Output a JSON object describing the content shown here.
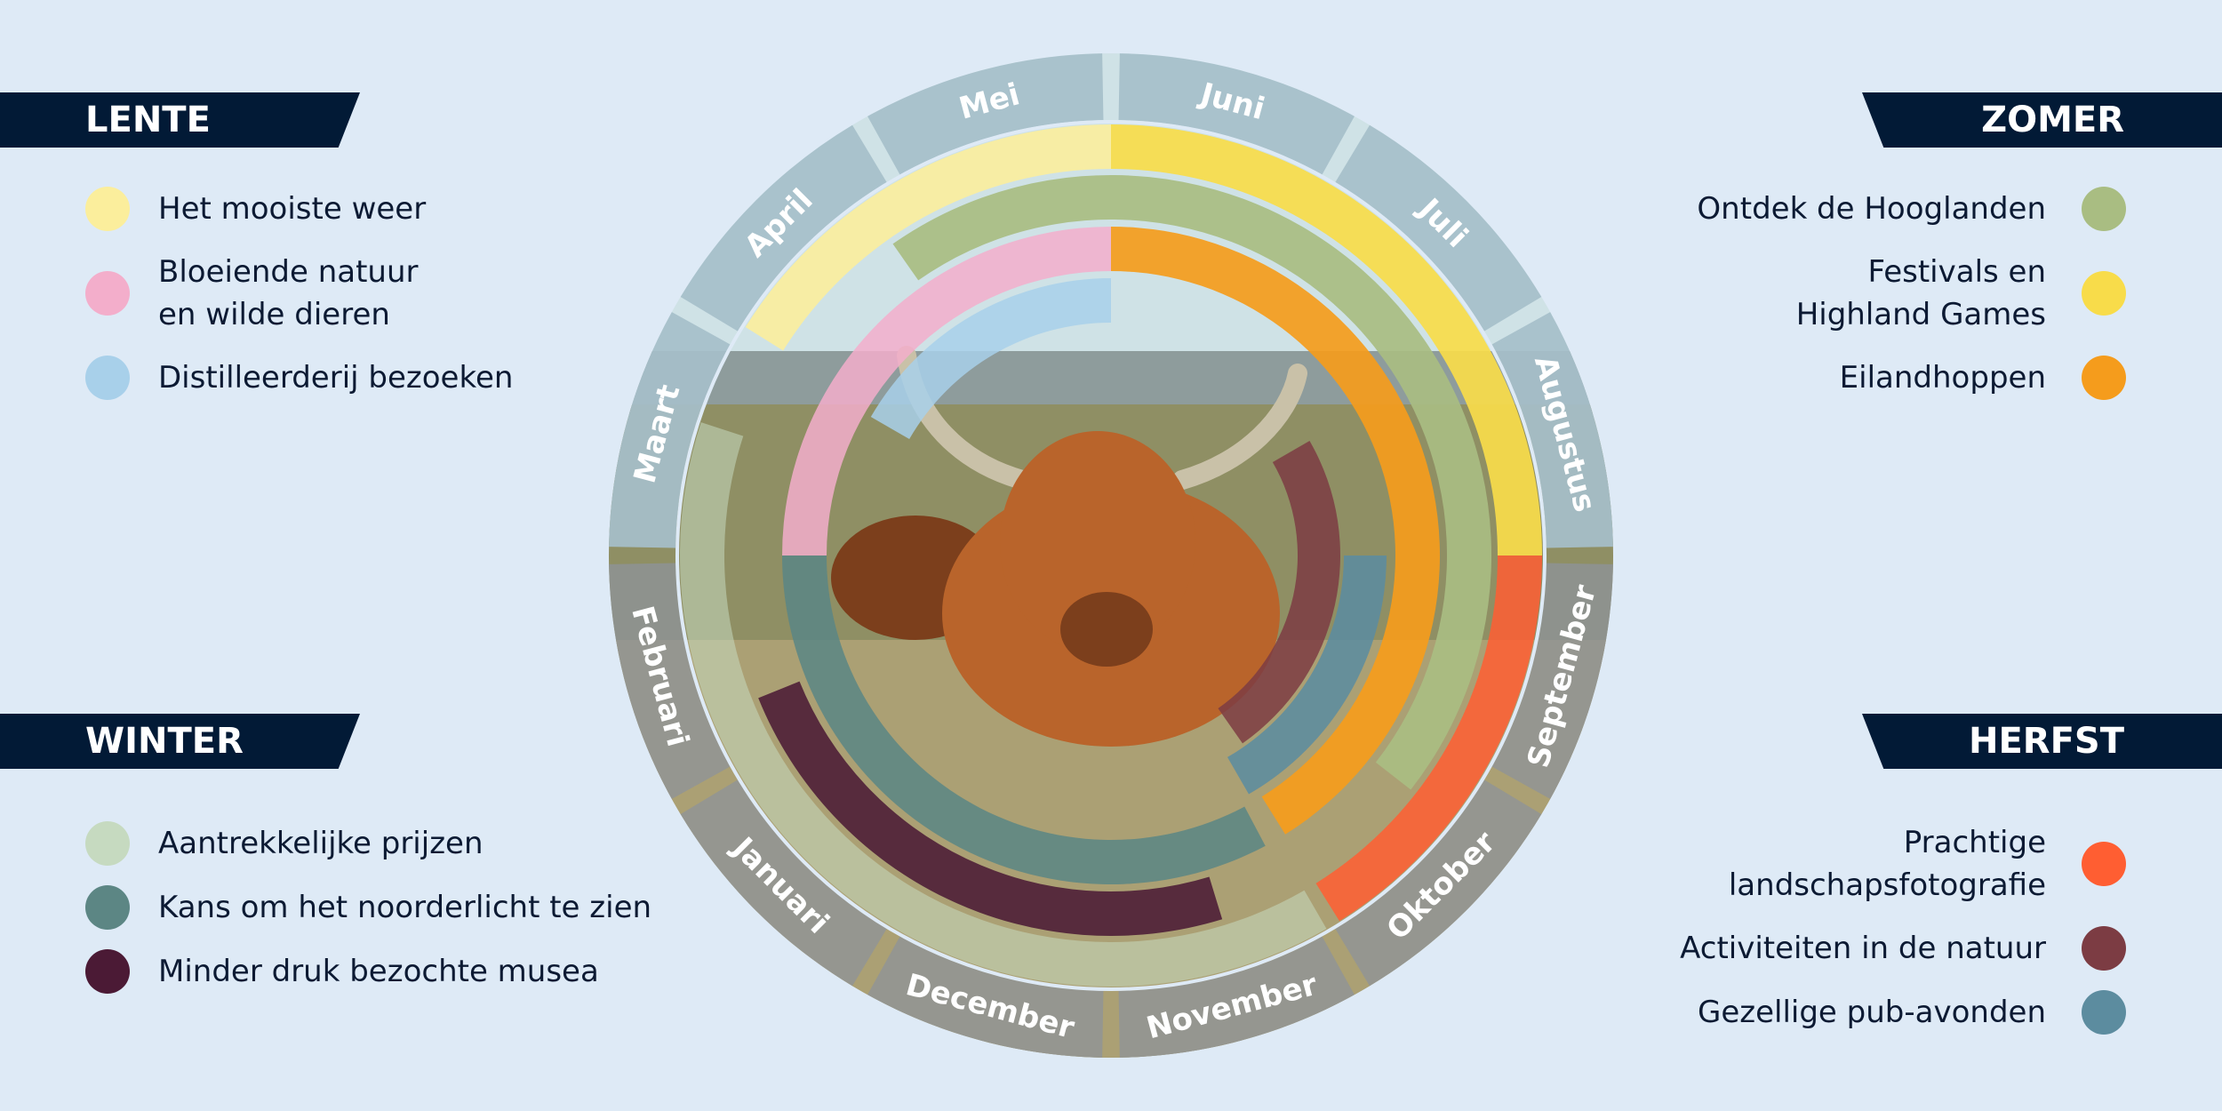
{
  "seasons": {
    "lente": {
      "title": "LENTE",
      "items": [
        {
          "label": "Het mooiste weer",
          "color": "#fbee9c"
        },
        {
          "label": "Bloeiende natuur\nen wilde dieren",
          "color": "#f3aecb"
        },
        {
          "label": "Distilleerderij bezoeken",
          "color": "#a8d0ea"
        }
      ]
    },
    "zomer": {
      "title": "ZOMER",
      "items": [
        {
          "label": "Ontdek de Hooglanden",
          "color": "#a9bd82"
        },
        {
          "label": "Festivals en\nHighland Games",
          "color": "#f8dc4a"
        },
        {
          "label": "Eilandhoppen",
          "color": "#f59c1c"
        }
      ]
    },
    "winter": {
      "title": "WINTER",
      "items": [
        {
          "label": "Aantrekkelijke prijzen",
          "color": "#c6dac0"
        },
        {
          "label": "Kans om het noorderlicht te zien",
          "color": "#5c8684"
        },
        {
          "label": "Minder druk bezochte musea",
          "color": "#4b1a35"
        }
      ]
    },
    "herfst": {
      "title": "HERFST",
      "items": [
        {
          "label": "Prachtige\nlandschapsfotografie",
          "color": "#ff5e32"
        },
        {
          "label": "Activiteiten in de natuur",
          "color": "#7c3c43"
        },
        {
          "label": "Gezellige pub-avonden",
          "color": "#5c8c9f"
        }
      ]
    }
  },
  "months": [
    "Januari",
    "Februari",
    "Maart",
    "April",
    "Mei",
    "Juni",
    "Juli",
    "Augustus",
    "September",
    "Oktober",
    "November",
    "December"
  ],
  "month_ring_colors": {
    "spring_summer": "#a6bfca",
    "autumn_winter": "#8e9498"
  },
  "photo_colors": {
    "sky": "#cfe2e6",
    "hills": "#8e9c9c",
    "field": "#8f8f64",
    "grass": "#b6a77a",
    "cow": "#b9642b",
    "cow_dark": "#7c3f1c",
    "horn": "#c9c1a8"
  }
}
